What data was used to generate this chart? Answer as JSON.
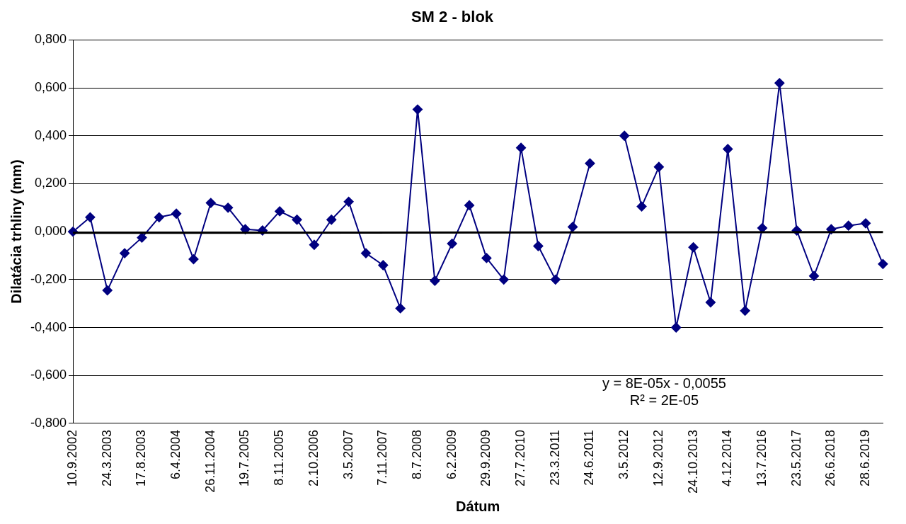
{
  "chart_data": {
    "type": "line",
    "title": "SM 2 - blok",
    "xlabel": "Dátum",
    "ylabel": "Dilatácia trhliny (mm)",
    "categories": [
      "10.9.2002",
      null,
      "24.3.2003",
      null,
      "17.8.2003",
      null,
      "6.4.2004",
      null,
      "26.11.2004",
      null,
      "19.7.2005",
      null,
      "8.11.2005",
      null,
      "2.10.2006",
      null,
      "3.5.2007",
      null,
      "7.11.2007",
      null,
      "8.7.2008",
      null,
      "6.2.2009",
      null,
      "29.9.2009",
      null,
      "27.7.2010",
      null,
      "23.3.2011",
      null,
      "24.6.2011",
      null,
      "3.5.2012",
      null,
      "12.9.2012",
      null,
      "24.10.2013",
      null,
      "4.12.2014",
      null,
      "13.7.2016",
      null,
      "23.5.2017",
      null,
      "26.6.2018",
      null,
      "28.6.2019",
      null
    ],
    "series": [
      {
        "type": "line",
        "color": "#000080",
        "marker": "diamond",
        "values": [
          0,
          0.06,
          -0.245,
          -0.09,
          -0.025,
          0.06,
          0.075,
          -0.115,
          0.12,
          0.1,
          0.01,
          0.005,
          0.085,
          0.05,
          -0.055,
          0.05,
          0.125,
          -0.09,
          -0.14,
          -0.32,
          0.51,
          -0.205,
          -0.05,
          0.11,
          -0.11,
          -0.2,
          0.35,
          -0.06,
          -0.2,
          0.02,
          0.285,
          null,
          0.4,
          0.105,
          0.27,
          -0.4,
          -0.065,
          -0.295,
          0.345,
          -0.33,
          0.015,
          0.62,
          0.005,
          -0.185,
          0.01,
          0.025,
          0.035,
          -0.135
        ]
      },
      {
        "type": "line",
        "color": "#000000",
        "marker": "none",
        "values": [
          -0.005,
          null,
          null,
          null,
          null,
          null,
          null,
          null,
          null,
          null,
          null,
          null,
          null,
          null,
          null,
          null,
          null,
          null,
          null,
          null,
          null,
          null,
          null,
          null,
          null,
          null,
          null,
          null,
          null,
          null,
          null,
          null,
          null,
          null,
          null,
          null,
          null,
          null,
          null,
          null,
          null,
          null,
          null,
          null,
          null,
          null,
          null,
          -0.002
        ]
      }
    ],
    "ylim": [
      -0.8,
      0.8
    ],
    "yticks": [
      {
        "value": -0.8,
        "label": "-0,800"
      },
      {
        "value": -0.6,
        "label": "-0,600"
      },
      {
        "value": -0.4,
        "label": "-0,400"
      },
      {
        "value": -0.2,
        "label": "-0,200"
      },
      {
        "value": 0,
        "label": "0,000"
      },
      {
        "value": 0.2,
        "label": "0,200"
      },
      {
        "value": 0.4,
        "label": "0,400"
      },
      {
        "value": 0.6,
        "label": "0,600"
      },
      {
        "value": 0.8,
        "label": "0,800"
      }
    ],
    "grid": "y",
    "legend": false,
    "annotations": [
      "y = 8E-05x - 0,0055\nR² = 2E-05"
    ]
  }
}
